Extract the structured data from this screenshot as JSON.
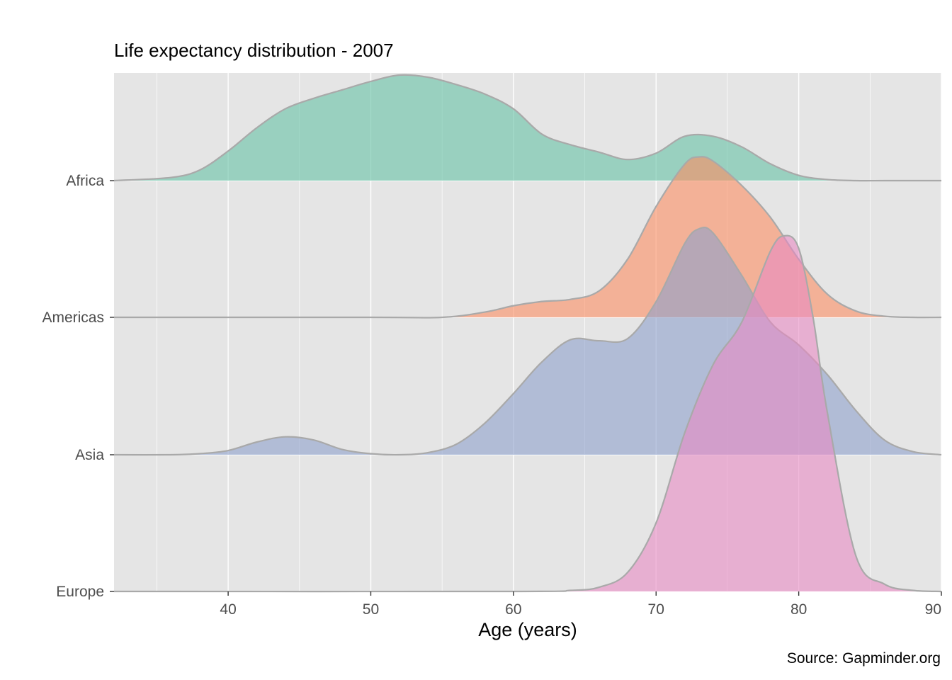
{
  "chart_data": {
    "type": "area",
    "subtype": "ridgeline-density",
    "title": "Life expectancy distribution - 2007",
    "xlabel": "Age (years)",
    "ylabel": "",
    "caption": "Source: Gapminder.org",
    "xlim": [
      32,
      90
    ],
    "x_ticks": [
      40,
      50,
      60,
      70,
      80,
      90
    ],
    "grid": true,
    "legend": "none",
    "categories": [
      "Africa",
      "Americas",
      "Asia",
      "Europe"
    ],
    "series": [
      {
        "name": "Africa",
        "color": "#66c2a5",
        "x": [
          32,
          36,
          38,
          40,
          42,
          44,
          46,
          48,
          50,
          52,
          54,
          56,
          58,
          60,
          62,
          64,
          66,
          68,
          70,
          72,
          74,
          76,
          78,
          80,
          82,
          84,
          86,
          88,
          90
        ],
        "density": [
          0.0,
          0.03,
          0.1,
          0.28,
          0.5,
          0.68,
          0.78,
          0.86,
          0.94,
          1.0,
          0.98,
          0.91,
          0.82,
          0.68,
          0.44,
          0.34,
          0.27,
          0.2,
          0.26,
          0.42,
          0.42,
          0.32,
          0.16,
          0.05,
          0.01,
          0.0,
          0.0,
          0.0,
          0.0
        ]
      },
      {
        "name": "Americas",
        "color": "#fc8d62",
        "x": [
          32,
          50,
          55,
          58,
          60,
          62,
          64,
          66,
          68,
          70,
          72,
          73,
          74,
          76,
          78,
          80,
          82,
          84,
          86,
          88,
          90
        ],
        "density": [
          0.0,
          0.0,
          0.0,
          0.05,
          0.11,
          0.15,
          0.17,
          0.25,
          0.55,
          1.05,
          1.45,
          1.52,
          1.48,
          1.25,
          0.95,
          0.55,
          0.22,
          0.06,
          0.01,
          0.0,
          0.0
        ]
      },
      {
        "name": "Asia",
        "color": "#8da0cb",
        "x": [
          32,
          36,
          38,
          40,
          42,
          44,
          46,
          48,
          50,
          52,
          54,
          56,
          58,
          60,
          62,
          64,
          66,
          68,
          70,
          72,
          73,
          74,
          76,
          78,
          80,
          82,
          84,
          86,
          88,
          90
        ],
        "density": [
          0.0,
          0.0,
          0.01,
          0.04,
          0.12,
          0.17,
          0.14,
          0.05,
          0.01,
          0.0,
          0.02,
          0.1,
          0.3,
          0.58,
          0.88,
          1.09,
          1.08,
          1.1,
          1.45,
          2.0,
          2.14,
          2.1,
          1.7,
          1.26,
          1.04,
          0.76,
          0.42,
          0.14,
          0.03,
          0.0
        ]
      },
      {
        "name": "Europe",
        "color": "#e78ac3",
        "x": [
          32,
          60,
          64,
          66,
          68,
          70,
          72,
          74,
          76,
          78,
          79,
          80,
          81,
          82,
          84,
          86,
          88,
          90
        ],
        "density": [
          0.0,
          0.0,
          0.01,
          0.04,
          0.18,
          0.65,
          1.5,
          2.15,
          2.55,
          3.22,
          3.37,
          3.25,
          2.6,
          1.7,
          0.34,
          0.07,
          0.01,
          0.0
        ]
      }
    ]
  }
}
